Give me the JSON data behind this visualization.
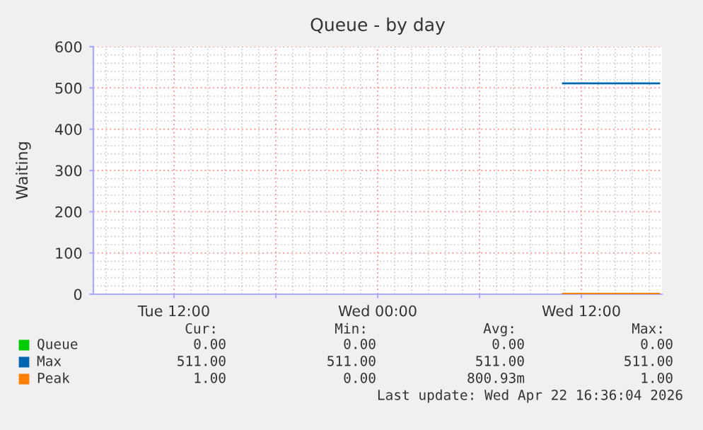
{
  "chart_data": {
    "type": "line",
    "title": "Queue - by day",
    "ylabel": "Waiting",
    "x": [
      "2026-04-22T10:55",
      "2026-04-22T13:45",
      "2026-04-22T16:35"
    ],
    "series": [
      {
        "name": "Queue",
        "color": "#00cc00",
        "values": [
          null,
          null,
          null
        ]
      },
      {
        "name": "Max",
        "color": "#0066b3",
        "values": [
          511,
          511,
          511
        ]
      },
      {
        "name": "Peak",
        "color": "#ff8000",
        "values": [
          1,
          1,
          1
        ]
      }
    ],
    "xlim": [
      "2026-04-21T07:15",
      "2026-04-22T16:45"
    ],
    "xticks": [
      {
        "value": "2026-04-21T12:00",
        "label": "Tue 12:00"
      },
      {
        "value": "2026-04-21T18:00",
        "label": null
      },
      {
        "value": "2026-04-22T00:00",
        "label": "Wed 00:00"
      },
      {
        "value": "2026-04-22T06:00",
        "label": null
      },
      {
        "value": "2026-04-22T12:00",
        "label": "Wed 12:00"
      }
    ],
    "ylim": [
      0,
      600
    ],
    "yticks": [
      0,
      100,
      200,
      300,
      400,
      500,
      600
    ],
    "grid": true,
    "legend": "bottom",
    "marker": "none",
    "line_style": "solid",
    "annotations": [
      "Cur:",
      "Min:",
      "Avg:",
      "Max:",
      "0.00",
      "0.00",
      "0.00",
      "0.00",
      "511.00",
      "511.00",
      "511.00",
      "511.00",
      "1.00",
      "0.00",
      "800.93m",
      "1.00",
      "Last update: Wed Apr 22 16:36:04 2026"
    ]
  }
}
